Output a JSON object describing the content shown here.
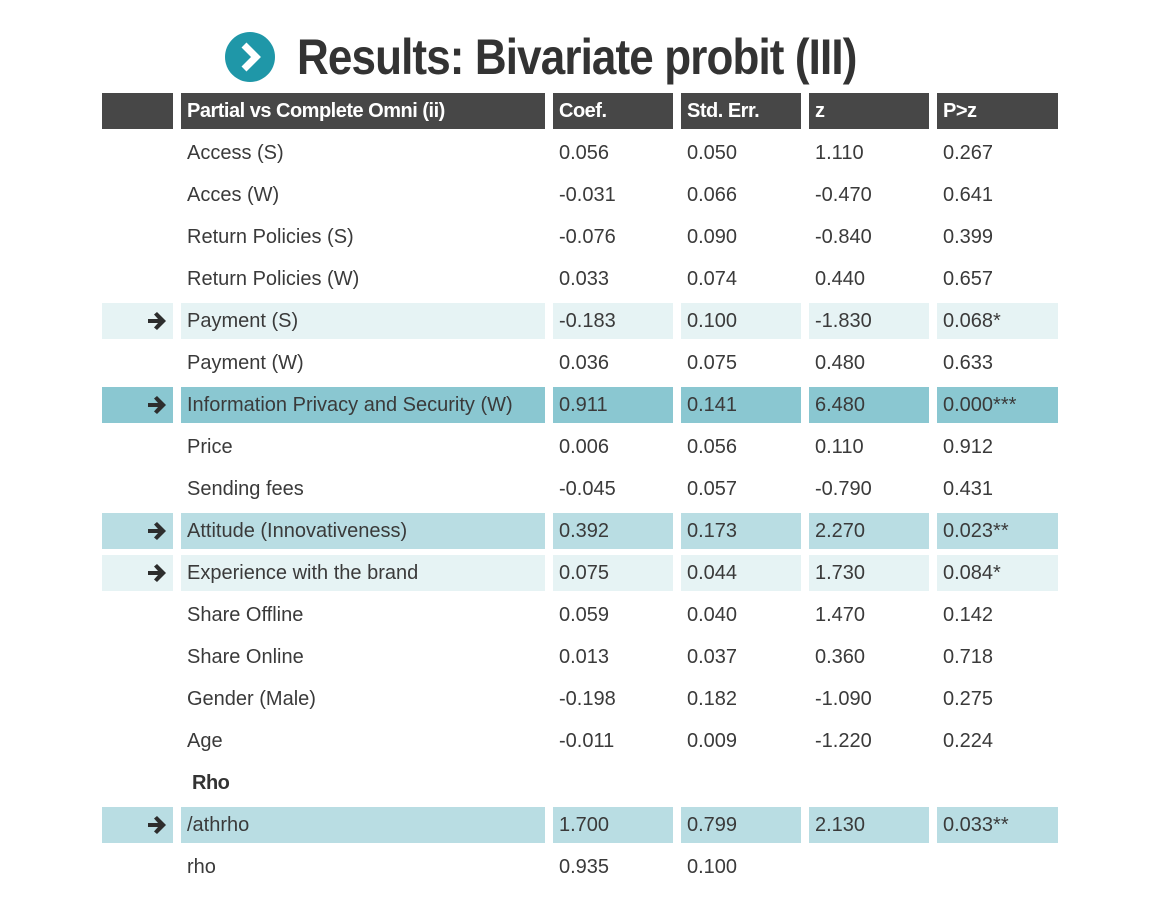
{
  "title": "Results: Bivariate probit (III)",
  "colors": {
    "header_bg": "#474747",
    "icon": "#1f97a8",
    "highlight_light": "#e6f3f4",
    "highlight_mid": "#b9dde3",
    "highlight_dark": "#8ac7d1"
  },
  "table": {
    "headers": [
      "Partial vs Complete Omni (ii)",
      "Coef.",
      "Std. Err.",
      "z",
      "P>z"
    ],
    "rows": [
      {
        "label": "Access (S)",
        "coef": "0.056",
        "se": "0.050",
        "z": "1.110",
        "p": "0.267",
        "highlight": "none",
        "arrow": false
      },
      {
        "label": "Acces (W)",
        "coef": "-0.031",
        "se": "0.066",
        "z": "-0.470",
        "p": "0.641",
        "highlight": "none",
        "arrow": false
      },
      {
        "label": "Return Policies (S)",
        "coef": "-0.076",
        "se": "0.090",
        "z": "-0.840",
        "p": "0.399",
        "highlight": "none",
        "arrow": false
      },
      {
        "label": "Return Policies (W)",
        "coef": "0.033",
        "se": "0.074",
        "z": "0.440",
        "p": "0.657",
        "highlight": "none",
        "arrow": false
      },
      {
        "label": "Payment (S)",
        "coef": "-0.183",
        "se": "0.100",
        "z": "-1.830",
        "p": "0.068*",
        "highlight": "light",
        "arrow": true
      },
      {
        "label": "Payment (W)",
        "coef": "0.036",
        "se": "0.075",
        "z": "0.480",
        "p": "0.633",
        "highlight": "none",
        "arrow": false
      },
      {
        "label": "Information Privacy and Security (W)",
        "coef": "0.911",
        "se": "0.141",
        "z": "6.480",
        "p": "0.000***",
        "highlight": "dark",
        "arrow": true
      },
      {
        "label": "Price",
        "coef": "0.006",
        "se": "0.056",
        "z": "0.110",
        "p": "0.912",
        "highlight": "none",
        "arrow": false
      },
      {
        "label": "Sending fees",
        "coef": "-0.045",
        "se": "0.057",
        "z": "-0.790",
        "p": "0.431",
        "highlight": "none",
        "arrow": false
      },
      {
        "label": "Attitude (Innovativeness)",
        "coef": "0.392",
        "se": "0.173",
        "z": "2.270",
        "p": "0.023**",
        "highlight": "mid",
        "arrow": true
      },
      {
        "label": "Experience with the brand",
        "coef": "0.075",
        "se": "0.044",
        "z": "1.730",
        "p": "0.084*",
        "highlight": "light",
        "arrow": true
      },
      {
        "label": "Share Offline",
        "coef": "0.059",
        "se": "0.040",
        "z": "1.470",
        "p": "0.142",
        "highlight": "none",
        "arrow": false
      },
      {
        "label": "Share Online",
        "coef": "0.013",
        "se": "0.037",
        "z": "0.360",
        "p": "0.718",
        "highlight": "none",
        "arrow": false
      },
      {
        "label": "Gender (Male)",
        "coef": "-0.198",
        "se": "0.182",
        "z": "-1.090",
        "p": "0.275",
        "highlight": "none",
        "arrow": false
      },
      {
        "label": "Age",
        "coef": "-0.011",
        "se": "0.009",
        "z": "-1.220",
        "p": "0.224",
        "highlight": "none",
        "arrow": false
      },
      {
        "section": "Rho"
      },
      {
        "label": "/athrho",
        "coef": "1.700",
        "se": "0.799",
        "z": "2.130",
        "p": "0.033**",
        "highlight": "mid",
        "arrow": true
      },
      {
        "label": "rho",
        "coef": "0.935",
        "se": "0.100",
        "z": "",
        "p": "",
        "highlight": "none",
        "arrow": false
      }
    ]
  }
}
